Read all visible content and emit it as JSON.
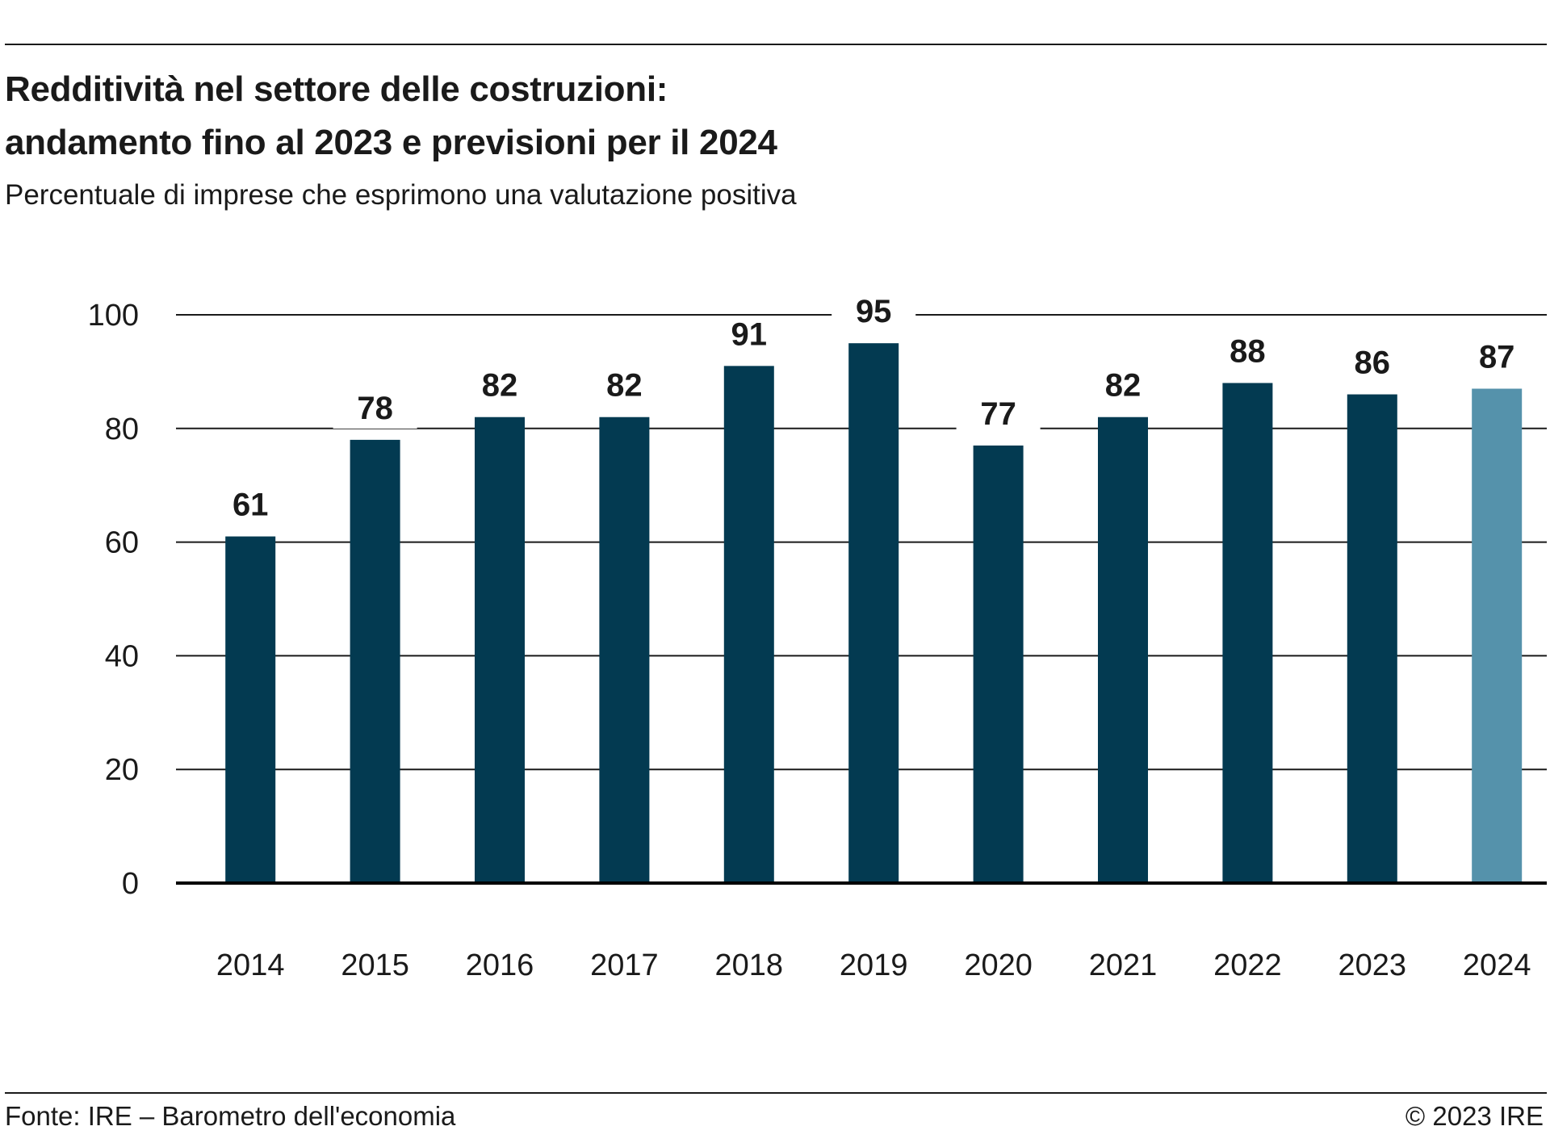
{
  "title_line1": "Redditività nel settore delle costruzioni:",
  "title_line2": "andamento fino al 2023 e previsioni per il 2024",
  "subtitle": "Percentuale di imprese che esprimono una valutazione positiva",
  "source": "Fonte: IRE – Barometro dell'economia",
  "copyright": "© 2023 IRE",
  "colors": {
    "bar": "#033a51",
    "bar_forecast": "#5592ab",
    "grid": "#1a1a1a"
  },
  "chart_data": {
    "type": "bar",
    "categories": [
      "2014",
      "2015",
      "2016",
      "2017",
      "2018",
      "2019",
      "2020",
      "2021",
      "2022",
      "2023",
      "2024"
    ],
    "values": [
      61,
      78,
      82,
      82,
      91,
      95,
      77,
      82,
      88,
      86,
      87
    ],
    "data_labels": [
      "61",
      "78",
      "82",
      "82",
      "91",
      "95",
      "77",
      "82",
      "88",
      "86",
      "87"
    ],
    "forecast_categories": [
      "2024"
    ],
    "ylim": [
      0,
      100
    ],
    "yticks": [
      0,
      20,
      40,
      60,
      80,
      100
    ],
    "ytick_labels": [
      "0",
      "20",
      "40",
      "60",
      "80",
      "100"
    ],
    "xlabel": "",
    "ylabel": "",
    "grid": true,
    "legend": "none"
  }
}
